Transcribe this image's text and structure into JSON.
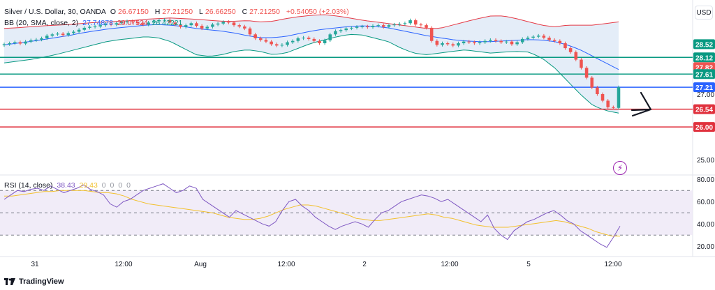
{
  "header": {
    "symbol": "Silver / U.S. Dollar, 30, OANDA",
    "o_label": "O",
    "o_value": "26.67150",
    "h_label": "H",
    "h_value": "27.21250",
    "l_label": "L",
    "l_value": "26.66250",
    "c_label": "C",
    "c_value": "27.21250",
    "change": "+0.54050 (+2.03%)"
  },
  "bb_legend": {
    "label": "BB (20, SMA, close, 2)",
    "basis": "27.74878",
    "upper": "29.07524",
    "lower": "26.42221"
  },
  "rsi_legend": {
    "label": "RSI (14, close)",
    "rsi": "38.43",
    "ma": "29.43",
    "extra": [
      "0",
      "0",
      "0",
      "0"
    ]
  },
  "currency_button": "USD",
  "footer": {
    "brand": "TradingView"
  },
  "colors": {
    "up": "#26a69a",
    "down": "#ef5350",
    "bb_upper": "#e53945",
    "bb_basis": "#2962ff",
    "bb_lower": "#089981",
    "bb_fill": "#dbe7f5",
    "rsi_line": "#7e57c2",
    "rsi_ma": "#f2c12e",
    "rsi_band": "#ede7f6",
    "level_green": "#089981",
    "level_blue": "#2962ff",
    "level_red": "#e0313d"
  },
  "chart_data": [
    {
      "type": "candlestick",
      "title": "Silver / U.S. Dollar, 30, OANDA",
      "y_ticks": [
        "27.00",
        "25.00"
      ],
      "ylim": [
        24.6,
        29.4
      ],
      "x_ticks": [
        "31",
        "12:00",
        "Aug",
        "12:00",
        "2",
        "12:00",
        "5",
        "12:00"
      ],
      "price_labels": [
        {
          "value": "28.52",
          "color": "#089981"
        },
        {
          "value": "28.12",
          "color": "#089981"
        },
        {
          "value": "27.82",
          "color": "#ef5350"
        },
        {
          "value": "27.61",
          "color": "#089981"
        },
        {
          "value": "27.21",
          "color": "#2962ff"
        },
        {
          "value": "26.54",
          "color": "#e0313d"
        },
        {
          "value": "26.00",
          "color": "#e0313d"
        }
      ],
      "horizontal_levels": [
        {
          "value": 28.12,
          "color": "#089981"
        },
        {
          "value": 27.61,
          "color": "#089981"
        },
        {
          "value": 27.21,
          "color": "#2962ff"
        },
        {
          "value": 26.54,
          "color": "#e0313d"
        },
        {
          "value": 26.0,
          "color": "#e0313d"
        }
      ],
      "close": [
        28.52,
        28.55,
        28.58,
        28.54,
        28.6,
        28.64,
        28.66,
        28.7,
        28.78,
        28.82,
        28.84,
        28.8,
        28.86,
        28.9,
        28.96,
        29.02,
        29.05,
        29.06,
        29.1,
        29.14,
        29.12,
        29.16,
        29.2,
        29.22,
        29.2,
        29.16,
        29.12,
        29.18,
        29.22,
        29.25,
        29.26,
        29.18,
        29.12,
        29.05,
        29.1,
        29.16,
        29.08,
        29.0,
        29.05,
        29.12,
        29.15,
        29.2,
        29.18,
        29.1,
        29.06,
        29.0,
        28.82,
        28.7,
        28.65,
        28.6,
        28.52,
        28.48,
        28.5,
        28.58,
        28.62,
        28.7,
        28.72,
        28.68,
        28.62,
        28.55,
        28.64,
        28.82,
        28.92,
        28.95,
        29.0,
        29.02,
        29.05,
        29.06,
        29.04,
        29.08,
        29.1,
        29.05,
        29.1,
        29.12,
        29.14,
        29.16,
        29.25,
        29.12,
        29.1,
        29.02,
        28.62,
        28.5,
        28.55,
        28.52,
        28.48,
        28.55,
        28.6,
        28.58,
        28.55,
        28.58,
        28.62,
        28.65,
        28.62,
        28.58,
        28.6,
        28.52,
        28.58,
        28.68,
        28.72,
        28.75,
        28.78,
        28.72,
        28.65,
        28.62,
        28.55,
        28.4,
        28.28,
        28.05,
        27.8,
        27.5,
        27.2,
        27.0,
        26.8,
        26.6,
        26.58,
        27.21
      ],
      "bb_upper": [
        29.0,
        29.02,
        29.05,
        29.08,
        29.1,
        29.12,
        29.15,
        29.18,
        29.2,
        29.22,
        29.24,
        29.28,
        29.3,
        29.32,
        29.3,
        29.28,
        29.25,
        29.22,
        29.22,
        29.24,
        29.2,
        29.22,
        29.3,
        29.36,
        29.4,
        29.42,
        29.38,
        29.32,
        29.25,
        29.2,
        29.15,
        29.1,
        29.05,
        29.0,
        29.0,
        29.1,
        29.2,
        29.3,
        29.38,
        29.38,
        29.3,
        29.2,
        29.1,
        29.05,
        29.1,
        29.1,
        29.1,
        29.15,
        29.2
      ],
      "bb_basis": [
        28.5,
        28.55,
        28.6,
        28.66,
        28.72,
        28.78,
        28.86,
        28.92,
        28.98,
        29.02,
        29.06,
        29.1,
        29.12,
        29.1,
        29.06,
        29.0,
        28.96,
        28.92,
        28.86,
        28.78,
        28.72,
        28.72,
        28.76,
        28.84,
        28.92,
        28.98,
        29.02,
        29.06,
        29.08,
        29.06,
        29.02,
        28.94,
        28.86,
        28.78,
        28.72,
        28.66,
        28.62,
        28.6,
        28.6,
        28.62,
        28.64,
        28.66,
        28.65,
        28.6,
        28.5,
        28.35,
        28.15,
        27.95,
        27.75
      ],
      "bb_lower": [
        27.95,
        28.0,
        28.05,
        28.12,
        28.2,
        28.3,
        28.4,
        28.5,
        28.6,
        28.66,
        28.7,
        28.75,
        28.72,
        28.6,
        28.4,
        28.2,
        28.15,
        28.2,
        28.3,
        28.35,
        28.3,
        28.2,
        28.25,
        28.4,
        28.55,
        28.65,
        28.75,
        28.82,
        28.8,
        28.7,
        28.6,
        28.4,
        28.25,
        28.2,
        28.25,
        28.3,
        28.35,
        28.3,
        28.25,
        28.28,
        28.3,
        28.28,
        28.1,
        27.8,
        27.4,
        27.0,
        26.65,
        26.5,
        26.42
      ]
    },
    {
      "type": "line",
      "title": "RSI (14, close)",
      "y_ticks": [
        "80.00",
        "60.00",
        "40.00",
        "20.00"
      ],
      "ylim": [
        12,
        82
      ],
      "bands": [
        70,
        50,
        30
      ],
      "series": [
        {
          "name": "RSI",
          "values": [
            62,
            66,
            70,
            69,
            71,
            72,
            70,
            74,
            71,
            68,
            70,
            72,
            75,
            71,
            69,
            66,
            58,
            55,
            60,
            62,
            66,
            70,
            72,
            74,
            76,
            72,
            68,
            70,
            74,
            72,
            62,
            58,
            54,
            50,
            46,
            52,
            49,
            46,
            43,
            40,
            38,
            42,
            52,
            60,
            62,
            56,
            52,
            46,
            42,
            38,
            35,
            38,
            40,
            42,
            40,
            37,
            44,
            50,
            52,
            56,
            60,
            62,
            64,
            66,
            65,
            63,
            60,
            62,
            58,
            54,
            50,
            46,
            42,
            48,
            36,
            30,
            26,
            34,
            38,
            42,
            44,
            47,
            50,
            52,
            48,
            43,
            40,
            34,
            30,
            26,
            22,
            19,
            28,
            38
          ]
        },
        {
          "name": "MA",
          "values": [
            65,
            65,
            66,
            67,
            68,
            69,
            69,
            70,
            70,
            70,
            70,
            69,
            68,
            68,
            67,
            65,
            62,
            60,
            58,
            57,
            56,
            55,
            54,
            53,
            52,
            51,
            50,
            48,
            46,
            45,
            44,
            44,
            45,
            47,
            50,
            53,
            55,
            57,
            57,
            56,
            54,
            52,
            50,
            48,
            45,
            44,
            43,
            43,
            44,
            45,
            46,
            47,
            48,
            49,
            48,
            46,
            45,
            43,
            41,
            39,
            38,
            37,
            37,
            37,
            38,
            39,
            40,
            41,
            42,
            43,
            42,
            40,
            38,
            36,
            33,
            31,
            29,
            29
          ]
        }
      ]
    }
  ]
}
